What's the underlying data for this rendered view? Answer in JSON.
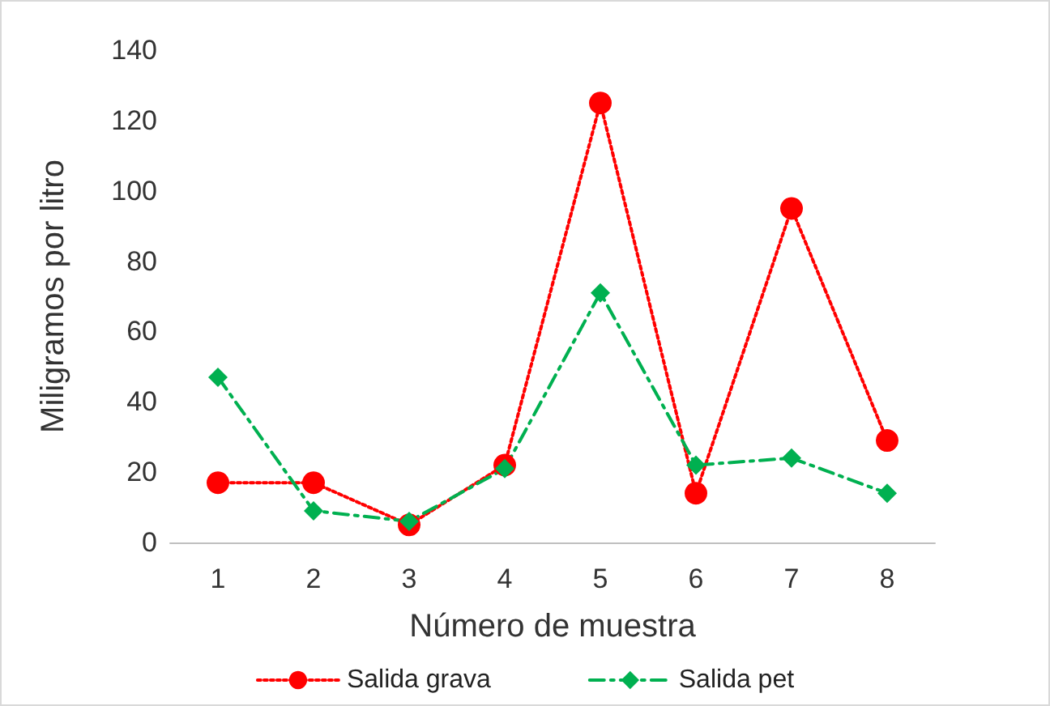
{
  "chart_data": {
    "type": "line",
    "xlabel": "Número de muestra",
    "ylabel": "Miligramos por litro",
    "categories": [
      "1",
      "2",
      "3",
      "4",
      "5",
      "6",
      "7",
      "8"
    ],
    "series": [
      {
        "name": "Salida grava",
        "color": "#ff0000",
        "marker": "circle",
        "line_style": "dotted",
        "values": [
          17,
          17,
          5,
          22,
          125,
          14,
          95,
          29
        ]
      },
      {
        "name": "Salida pet",
        "color": "#00b050",
        "marker": "diamond",
        "line_style": "dashed",
        "values": [
          47,
          9,
          6,
          21,
          71,
          22,
          24,
          14
        ]
      }
    ],
    "ylim": [
      0,
      140
    ],
    "yticks": [
      0,
      20,
      40,
      60,
      80,
      100,
      120,
      140
    ],
    "grid": false,
    "legend": "bottom"
  }
}
